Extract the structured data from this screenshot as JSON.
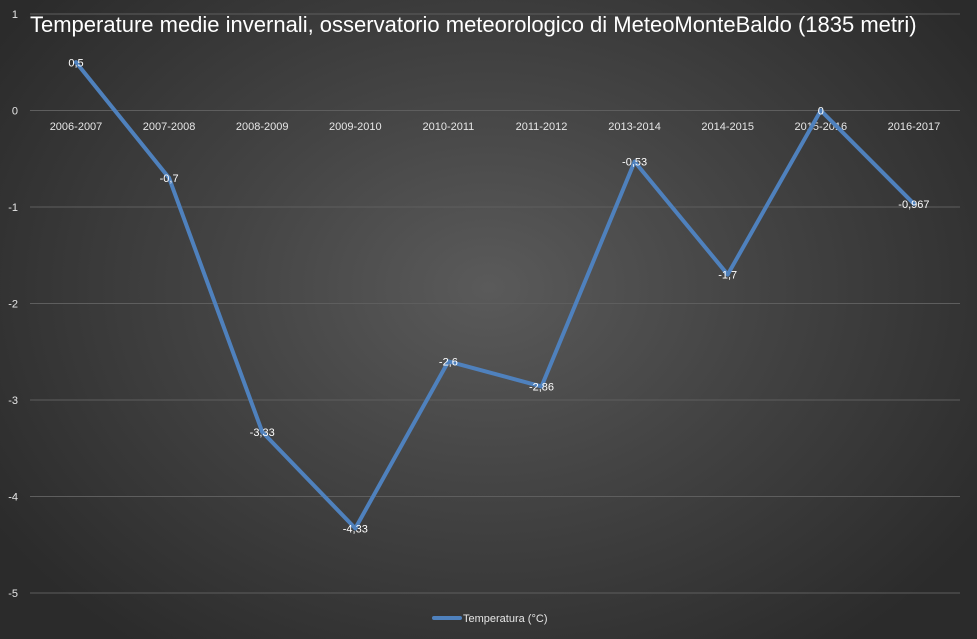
{
  "chart_data": {
    "type": "line",
    "title": "Temperature medie invernali, osservatorio meteorologico di MeteoMonteBaldo (1835 metri)",
    "xlabel": "",
    "ylabel": "",
    "categories": [
      "2006-2007",
      "2007-2008",
      "2008-2009",
      "2009-2010",
      "2010-2011",
      "2011-2012",
      "2013-2014",
      "2014-2015",
      "2015-2016",
      "2016-2017"
    ],
    "series": [
      {
        "name": "Temperatura (°C)",
        "values": [
          0.5,
          -0.7,
          -3.33,
          -4.33,
          -2.6,
          -2.86,
          -0.53,
          -1.7,
          0,
          -0.967
        ],
        "labels": [
          "0,5",
          "-0,7",
          "-3,33",
          "-4,33",
          "-2,6",
          "-2,86",
          "-0,53",
          "-1,7",
          "0",
          "-0,967"
        ],
        "color": "#4f81bd"
      }
    ],
    "ylim": [
      -5,
      1
    ],
    "yticks": [
      1,
      0,
      -1,
      -2,
      -3,
      -4,
      -5
    ],
    "grid": true,
    "legend": "bottom",
    "gridline_color": "#5e5e5e",
    "text_color": "#e6e6e6"
  }
}
